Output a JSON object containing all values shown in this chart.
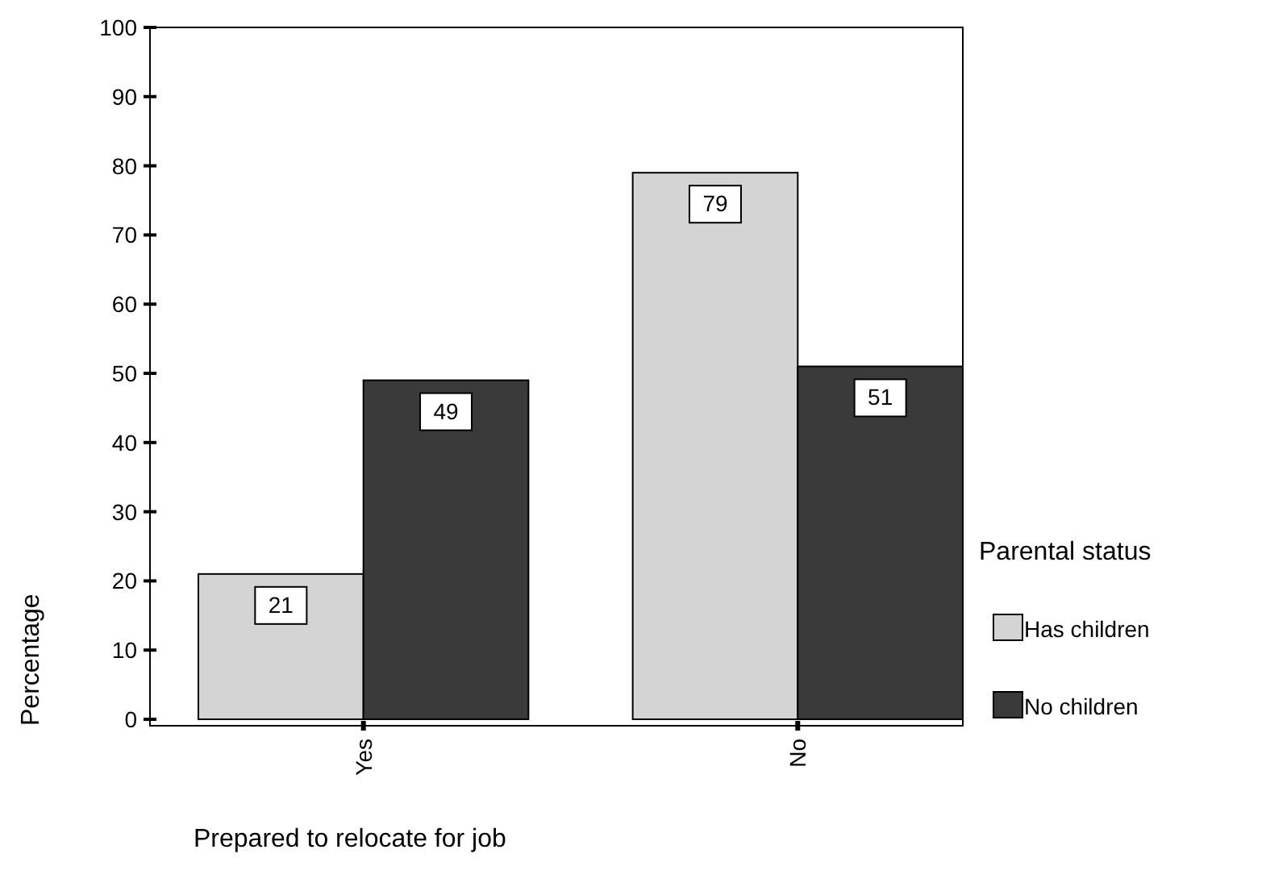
{
  "chart_data": {
    "type": "bar",
    "xlabel": "Prepared to relocate for job",
    "ylabel": "Percentage",
    "legend_title": "Parental status",
    "categories": [
      "Yes",
      "No"
    ],
    "series": [
      {
        "name": "Has children",
        "color": "#d4d4d4",
        "values": [
          21,
          79
        ]
      },
      {
        "name": "No children",
        "color": "#3a3a3a",
        "values": [
          49,
          51
        ]
      }
    ],
    "ylim": [
      0,
      100
    ],
    "yticks": [
      0,
      10,
      20,
      30,
      40,
      50,
      60,
      70,
      80,
      90,
      100
    ],
    "data_labels": true,
    "legend": "right"
  }
}
